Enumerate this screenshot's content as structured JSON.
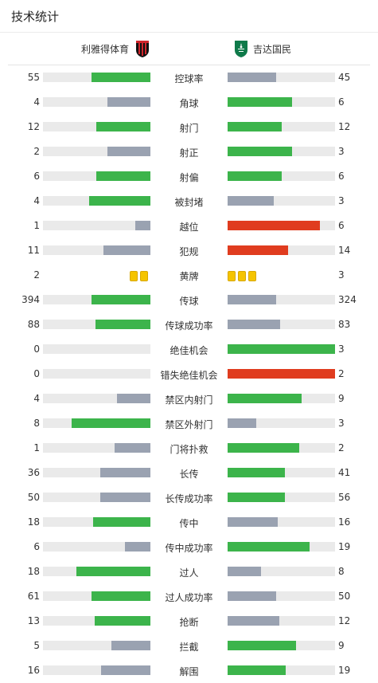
{
  "header": {
    "title": "技术统计"
  },
  "teams": {
    "home": "利雅得体育",
    "away": "吉达国民"
  },
  "colors": {
    "better": "#3cb44b",
    "worse": "#9aa2b1",
    "red": "#e03c1f",
    "track": "#eaeaea",
    "card": "#f5c400"
  },
  "icons": {
    "home_crest": "shield-crest-red-black",
    "away_crest": "shield-crest-green"
  },
  "stats": [
    {
      "label": "控球率",
      "home": "55",
      "away": "45",
      "hf": 0.55,
      "af": 0.45,
      "hc": "better",
      "ac": "worse"
    },
    {
      "label": "角球",
      "home": "4",
      "away": "6",
      "hf": 0.4,
      "af": 0.6,
      "hc": "worse",
      "ac": "better"
    },
    {
      "label": "射门",
      "home": "12",
      "away": "12",
      "hf": 0.5,
      "af": 0.5,
      "hc": "better",
      "ac": "better"
    },
    {
      "label": "射正",
      "home": "2",
      "away": "3",
      "hf": 0.4,
      "af": 0.6,
      "hc": "worse",
      "ac": "better"
    },
    {
      "label": "射偏",
      "home": "6",
      "away": "6",
      "hf": 0.5,
      "af": 0.5,
      "hc": "better",
      "ac": "better"
    },
    {
      "label": "被封堵",
      "home": "4",
      "away": "3",
      "hf": 0.57,
      "af": 0.43,
      "hc": "better",
      "ac": "worse"
    },
    {
      "label": "越位",
      "home": "1",
      "away": "6",
      "hf": 0.14,
      "af": 0.86,
      "hc": "worse",
      "ac": "red"
    },
    {
      "label": "犯规",
      "home": "11",
      "away": "14",
      "hf": 0.44,
      "af": 0.56,
      "hc": "worse",
      "ac": "red"
    },
    {
      "label": "黄牌",
      "home": "2",
      "away": "3",
      "cards_home": 2,
      "cards_away": 3
    },
    {
      "label": "传球",
      "home": "394",
      "away": "324",
      "hf": 0.55,
      "af": 0.45,
      "hc": "better",
      "ac": "worse"
    },
    {
      "label": "传球成功率",
      "home": "88",
      "away": "83",
      "hf": 0.51,
      "af": 0.49,
      "hc": "better",
      "ac": "worse"
    },
    {
      "label": "绝佳机会",
      "home": "0",
      "away": "3",
      "hf": 0,
      "af": 1,
      "hc": "worse",
      "ac": "better"
    },
    {
      "label": "错失绝佳机会",
      "home": "0",
      "away": "2",
      "hf": 0,
      "af": 1,
      "hc": "worse",
      "ac": "red"
    },
    {
      "label": "禁区内射门",
      "home": "4",
      "away": "9",
      "hf": 0.31,
      "af": 0.69,
      "hc": "worse",
      "ac": "better"
    },
    {
      "label": "禁区外射门",
      "home": "8",
      "away": "3",
      "hf": 0.73,
      "af": 0.27,
      "hc": "better",
      "ac": "worse"
    },
    {
      "label": "门将扑救",
      "home": "1",
      "away": "2",
      "hf": 0.33,
      "af": 0.67,
      "hc": "worse",
      "ac": "better"
    },
    {
      "label": "长传",
      "home": "36",
      "away": "41",
      "hf": 0.47,
      "af": 0.53,
      "hc": "worse",
      "ac": "better"
    },
    {
      "label": "长传成功率",
      "home": "50",
      "away": "56",
      "hf": 0.47,
      "af": 0.53,
      "hc": "worse",
      "ac": "better"
    },
    {
      "label": "传中",
      "home": "18",
      "away": "16",
      "hf": 0.53,
      "af": 0.47,
      "hc": "better",
      "ac": "worse"
    },
    {
      "label": "传中成功率",
      "home": "6",
      "away": "19",
      "hf": 0.24,
      "af": 0.76,
      "hc": "worse",
      "ac": "better"
    },
    {
      "label": "过人",
      "home": "18",
      "away": "8",
      "hf": 0.69,
      "af": 0.31,
      "hc": "better",
      "ac": "worse"
    },
    {
      "label": "过人成功率",
      "home": "61",
      "away": "50",
      "hf": 0.55,
      "af": 0.45,
      "hc": "better",
      "ac": "worse"
    },
    {
      "label": "抢断",
      "home": "13",
      "away": "12",
      "hf": 0.52,
      "af": 0.48,
      "hc": "better",
      "ac": "worse"
    },
    {
      "label": "拦截",
      "home": "5",
      "away": "9",
      "hf": 0.36,
      "af": 0.64,
      "hc": "worse",
      "ac": "better"
    },
    {
      "label": "解围",
      "home": "16",
      "away": "19",
      "hf": 0.46,
      "af": 0.54,
      "hc": "worse",
      "ac": "better"
    }
  ]
}
